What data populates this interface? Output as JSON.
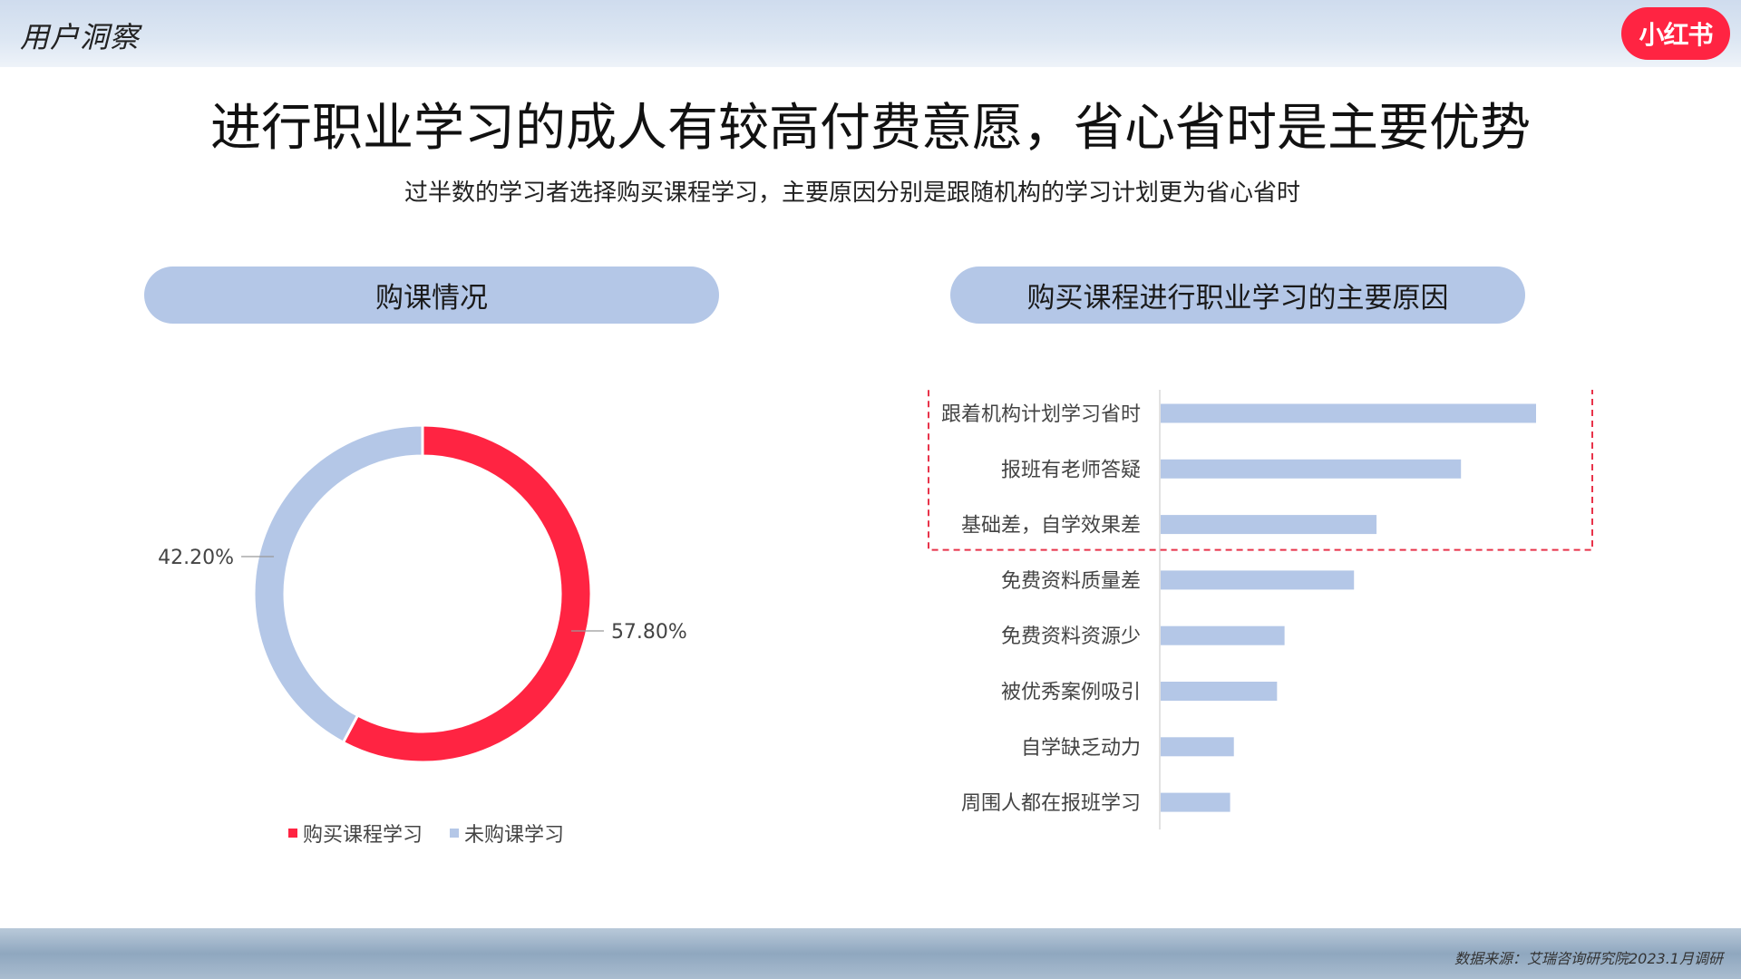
{
  "header": {
    "section_tag": "用户洞察",
    "logo_text": "小红书",
    "logo_color": "#ff2442"
  },
  "title": "进行职业学习的成人有较高付费意愿，省心省时是主要优势",
  "subtitle": "过半数的学习者选择购买课程学习，主要原因分别是跟随机构的学习计划更为省心省时",
  "pills": {
    "left": "购课情况",
    "right": "购买课程进行职业学习的主要原因"
  },
  "chart_data": [
    {
      "type": "pie",
      "variant": "donut",
      "title": "购课情况",
      "labels": [
        "购买课程学习",
        "未购课学习"
      ],
      "values": [
        57.8,
        42.2
      ],
      "value_labels": [
        "57.80%",
        "42.20%"
      ],
      "colors": [
        "#ff2442",
        "#b4c7e7"
      ],
      "legend": "bottom"
    },
    {
      "type": "bar",
      "orientation": "horizontal",
      "title": "购买课程进行职业学习的主要原因",
      "categories": [
        "跟着机构计划学习省时",
        "报班有老师答疑",
        "基础差，自学效果差",
        "免费资料质量差",
        "免费资料资源少",
        "被优秀案例吸引",
        "自学缺乏动力",
        "周围人都在报班学习"
      ],
      "values": [
        100,
        80,
        57.5,
        51.5,
        33,
        31,
        19.5,
        18.5
      ],
      "value_unit": "relative",
      "color": "#b4c7e7",
      "highlight_color": "#e8334a",
      "highlighted_count": 3,
      "grid": false
    }
  ],
  "footer": {
    "source": "数据来源：艾瑞咨询研究院2023.1月调研"
  }
}
